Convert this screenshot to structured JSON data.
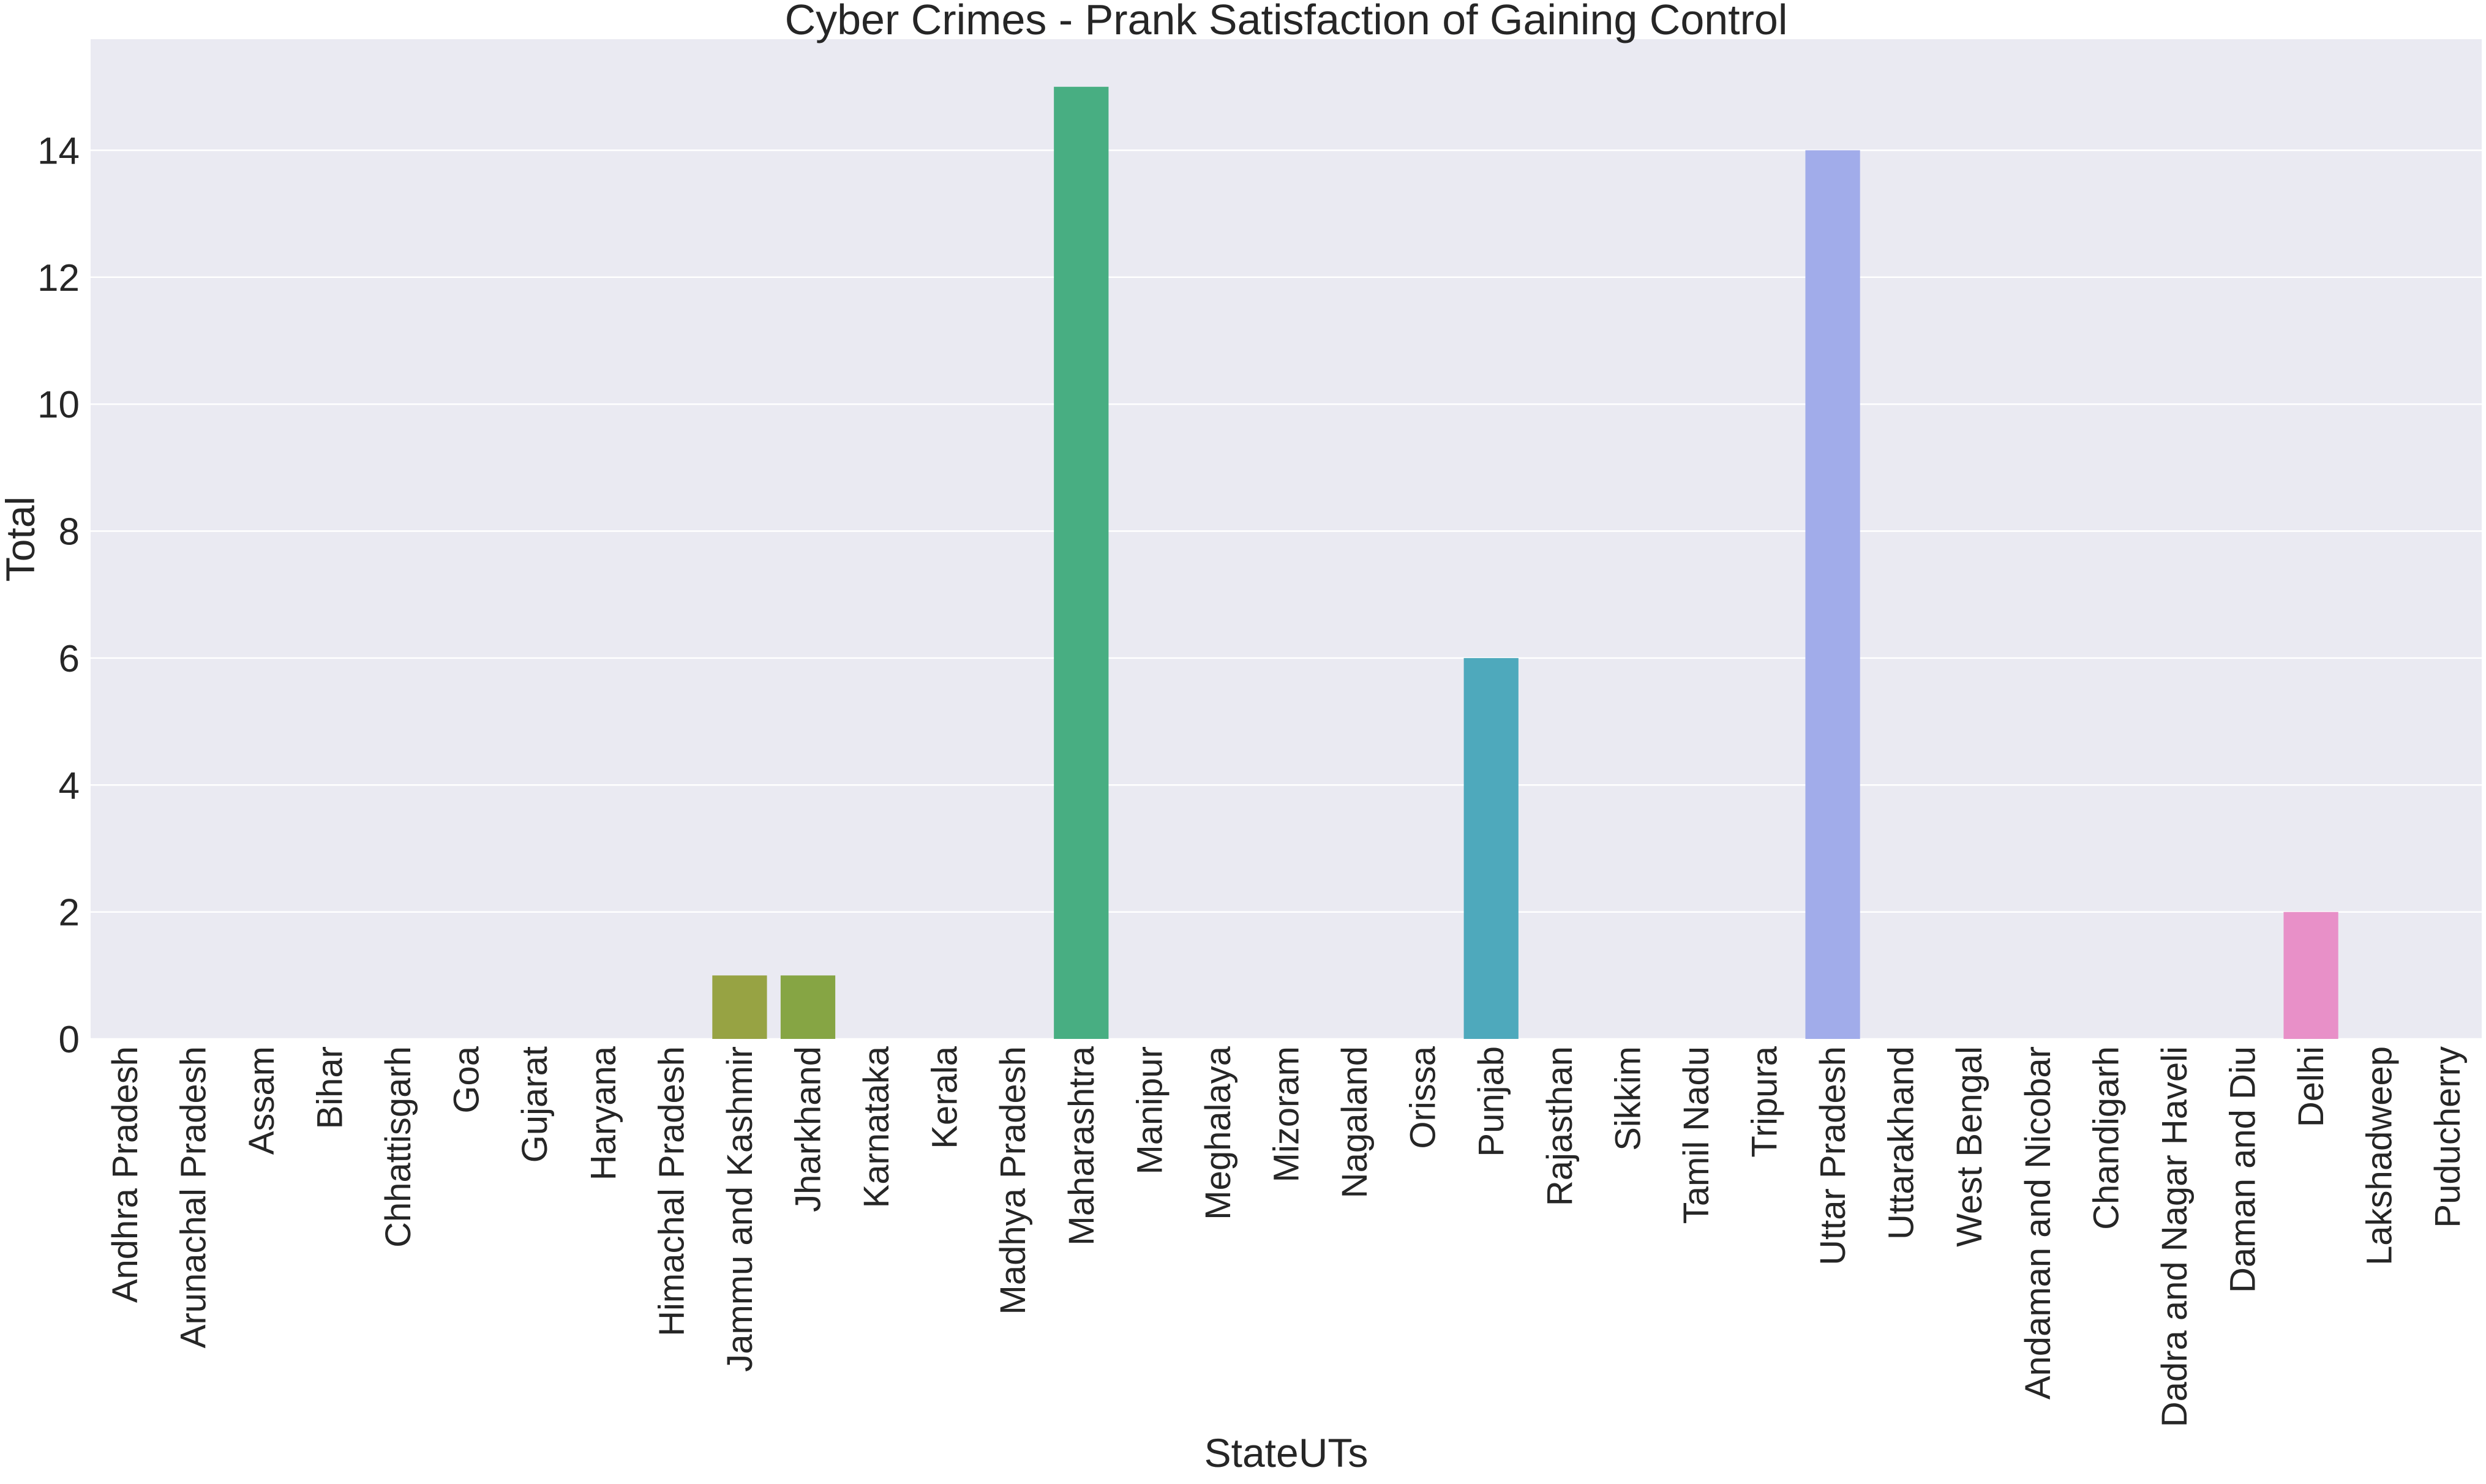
{
  "chart_data": {
    "type": "bar",
    "title": "Cyber Crimes - Prank Satisfaction of Gaining Control",
    "xlabel": "StateUTs",
    "ylabel": "Total",
    "ylim": [
      0,
      15.75
    ],
    "yticks": [
      0,
      2,
      4,
      6,
      8,
      10,
      12,
      14
    ],
    "grid": true,
    "categories": [
      "Andhra Pradesh",
      "Arunachal Pradesh",
      "Assam",
      "Bihar",
      "Chhattisgarh",
      "Goa",
      "Gujarat",
      "Haryana",
      "Himachal Pradesh",
      "Jammu and Kashmir",
      "Jharkhand",
      "Karnataka",
      "Kerala",
      "Madhya Pradesh",
      "Maharashtra",
      "Manipur",
      "Meghalaya",
      "Mizoram",
      "Nagaland",
      "Orissa",
      "Punjab",
      "Rajasthan",
      "Sikkim",
      "Tamil Nadu",
      "Tripura",
      "Uttar Pradesh",
      "Uttarakhand",
      "West Bengal",
      "Andaman and Nicobar",
      "Chandigarh",
      "Dadra and Nagar Haveli",
      "Daman and Diu",
      "Delhi",
      "Lakshadweep",
      "Puducherry"
    ],
    "values": [
      0,
      0,
      0,
      0,
      0,
      0,
      0,
      0,
      0,
      1,
      1,
      0,
      0,
      0,
      15,
      0,
      0,
      0,
      0,
      0,
      6,
      0,
      0,
      0,
      0,
      14,
      0,
      0,
      0,
      0,
      0,
      0,
      2,
      0,
      0
    ],
    "colors": [
      "#f77189",
      "#f7754f",
      "#e18532",
      "#cf8f31",
      "#bb9832",
      "#a8a032",
      "#93a731",
      "#97a03d",
      "#8fa33f",
      "#97a343",
      "#86a544",
      "#7da845",
      "#50b131",
      "#35ae70",
      "#48ae82",
      "#36ada4",
      "#37abb3",
      "#39a9be",
      "#3ba3c9",
      "#3da7c4",
      "#4ea9bc",
      "#41a6da",
      "#7b9af4",
      "#8b9ef2",
      "#9f8ff4",
      "#a1acea",
      "#c48ff4",
      "#e56be4",
      "#f45fc1",
      "#f565b4",
      "#f66ba8",
      "#f6709c",
      "#e890c8",
      "#f47992",
      "#f77189"
    ],
    "background_color": "#eaeaf2",
    "grid_color": "#ffffff"
  }
}
